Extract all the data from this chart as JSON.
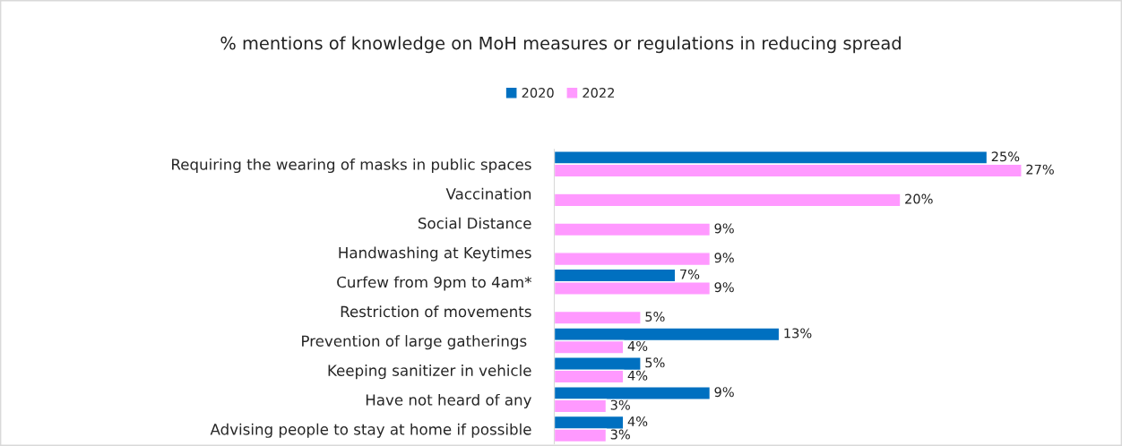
{
  "chart_data": {
    "type": "bar",
    "orientation": "horizontal",
    "title": "% mentions of knowledge on MoH measures or regulations in reducing spread",
    "categories": [
      "Requiring the wearing of masks in public spaces",
      "Vaccination",
      "Social Distance",
      "Handwashing at Keytimes",
      "Curfew from 9pm to 4am*",
      "Restriction of movements",
      "Prevention of large gatherings ",
      "Keeping sanitizer in vehicle",
      "Have not heard of any",
      "Advising people to stay at home if possible"
    ],
    "series": [
      {
        "name": "2020",
        "color": "#0070c0",
        "values": [
          25,
          null,
          null,
          null,
          7,
          null,
          13,
          5,
          9,
          4
        ],
        "value_labels": [
          "25%",
          null,
          null,
          null,
          "7%",
          null,
          "13%",
          "5%",
          "9%",
          "4%"
        ]
      },
      {
        "name": "2022",
        "color": "#ff99ff",
        "values": [
          27,
          20,
          9,
          9,
          9,
          5,
          4,
          4,
          3,
          3
        ],
        "value_labels": [
          "27%",
          "20%",
          "9%",
          "9%",
          "9%",
          "5%",
          "4%",
          "4%",
          "3%",
          "3%"
        ]
      }
    ],
    "legend": "top",
    "grid": false,
    "tick_labels": "y"
  }
}
